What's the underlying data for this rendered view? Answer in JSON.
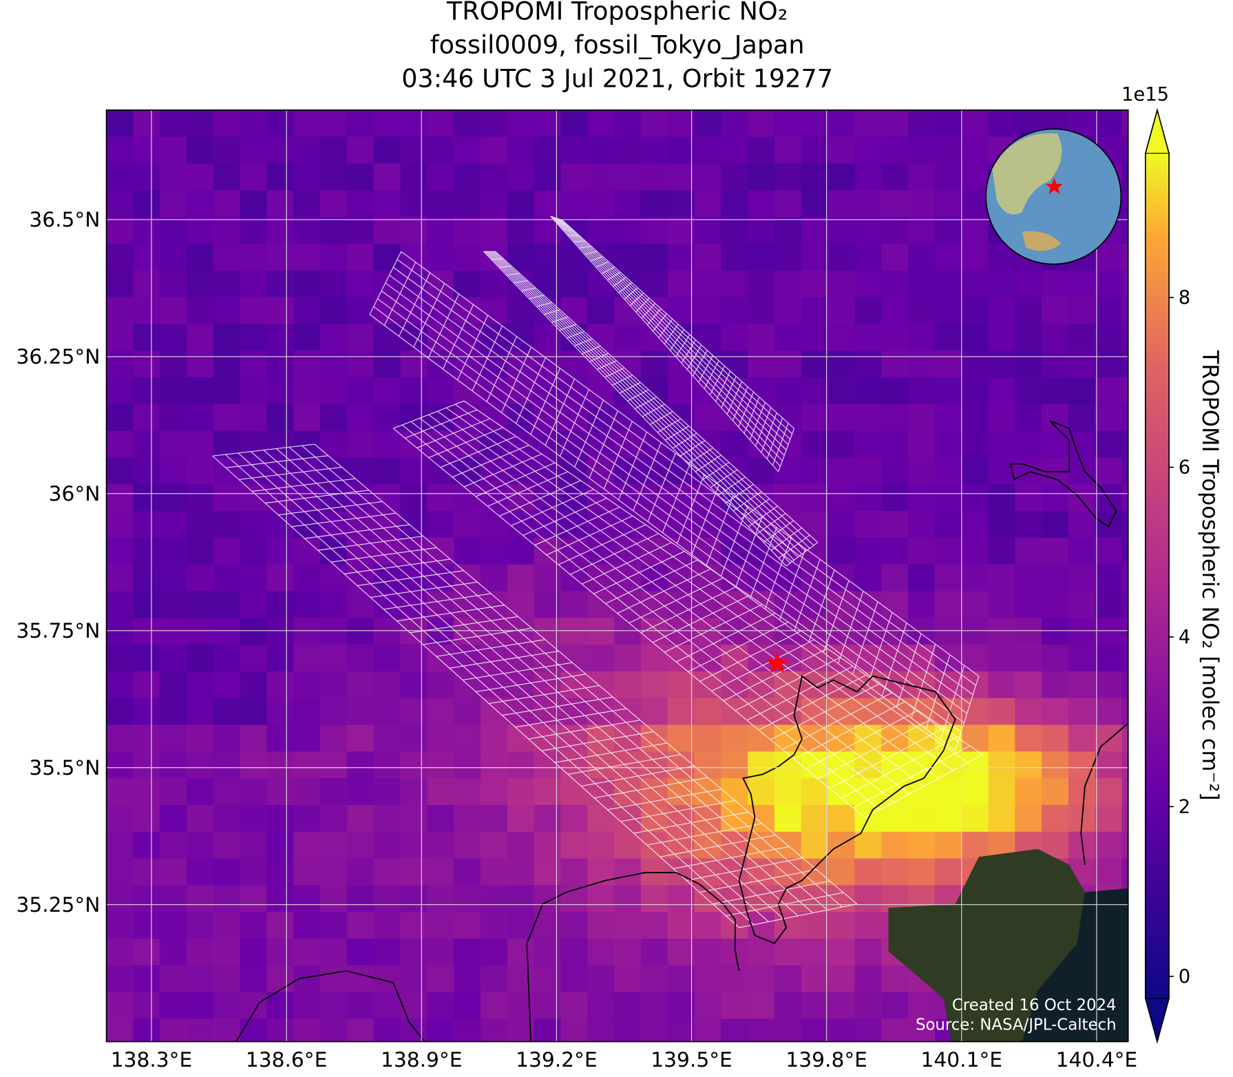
{
  "map": {
    "title": [
      "TROPOMI Tropospheric NO₂",
      "fossil0009, fossil_Tokyo_Japan",
      "03:46 UTC 3 Jul 2021, Orbit 19277"
    ],
    "xlim": [
      138.2,
      140.47
    ],
    "ylim": [
      35.0,
      36.7
    ],
    "xticks": [
      {
        "value": 138.3,
        "label": "138.3°E"
      },
      {
        "value": 138.6,
        "label": "138.6°E"
      },
      {
        "value": 138.9,
        "label": "138.9°E"
      },
      {
        "value": 139.2,
        "label": "139.2°E"
      },
      {
        "value": 139.5,
        "label": "139.5°E"
      },
      {
        "value": 139.8,
        "label": "139.8°E"
      },
      {
        "value": 140.1,
        "label": "140.1°E"
      },
      {
        "value": 140.4,
        "label": "140.4°E"
      }
    ],
    "yticks": [
      {
        "value": 35.25,
        "label": "35.25°N"
      },
      {
        "value": 35.5,
        "label": "35.5°N"
      },
      {
        "value": 35.75,
        "label": "35.75°N"
      },
      {
        "value": 36,
        "label": "36°N"
      },
      {
        "value": 36.25,
        "label": "36.25°N"
      },
      {
        "value": 36.5,
        "label": "36.5°N"
      }
    ],
    "target": {
      "lon": 139.69,
      "lat": 35.69,
      "color": "#ff0000"
    },
    "colorbar": {
      "label": "TROPOMI Tropospheric NO₂ [molec cm⁻²]",
      "exponent": "1e15",
      "lim": [
        -0.26,
        9.7
      ],
      "ticks": [
        0,
        2,
        4,
        6,
        8
      ]
    },
    "credits": [
      "Created 16 Oct 2024",
      "Source: NASA/JPL-Caltech"
    ]
  }
}
